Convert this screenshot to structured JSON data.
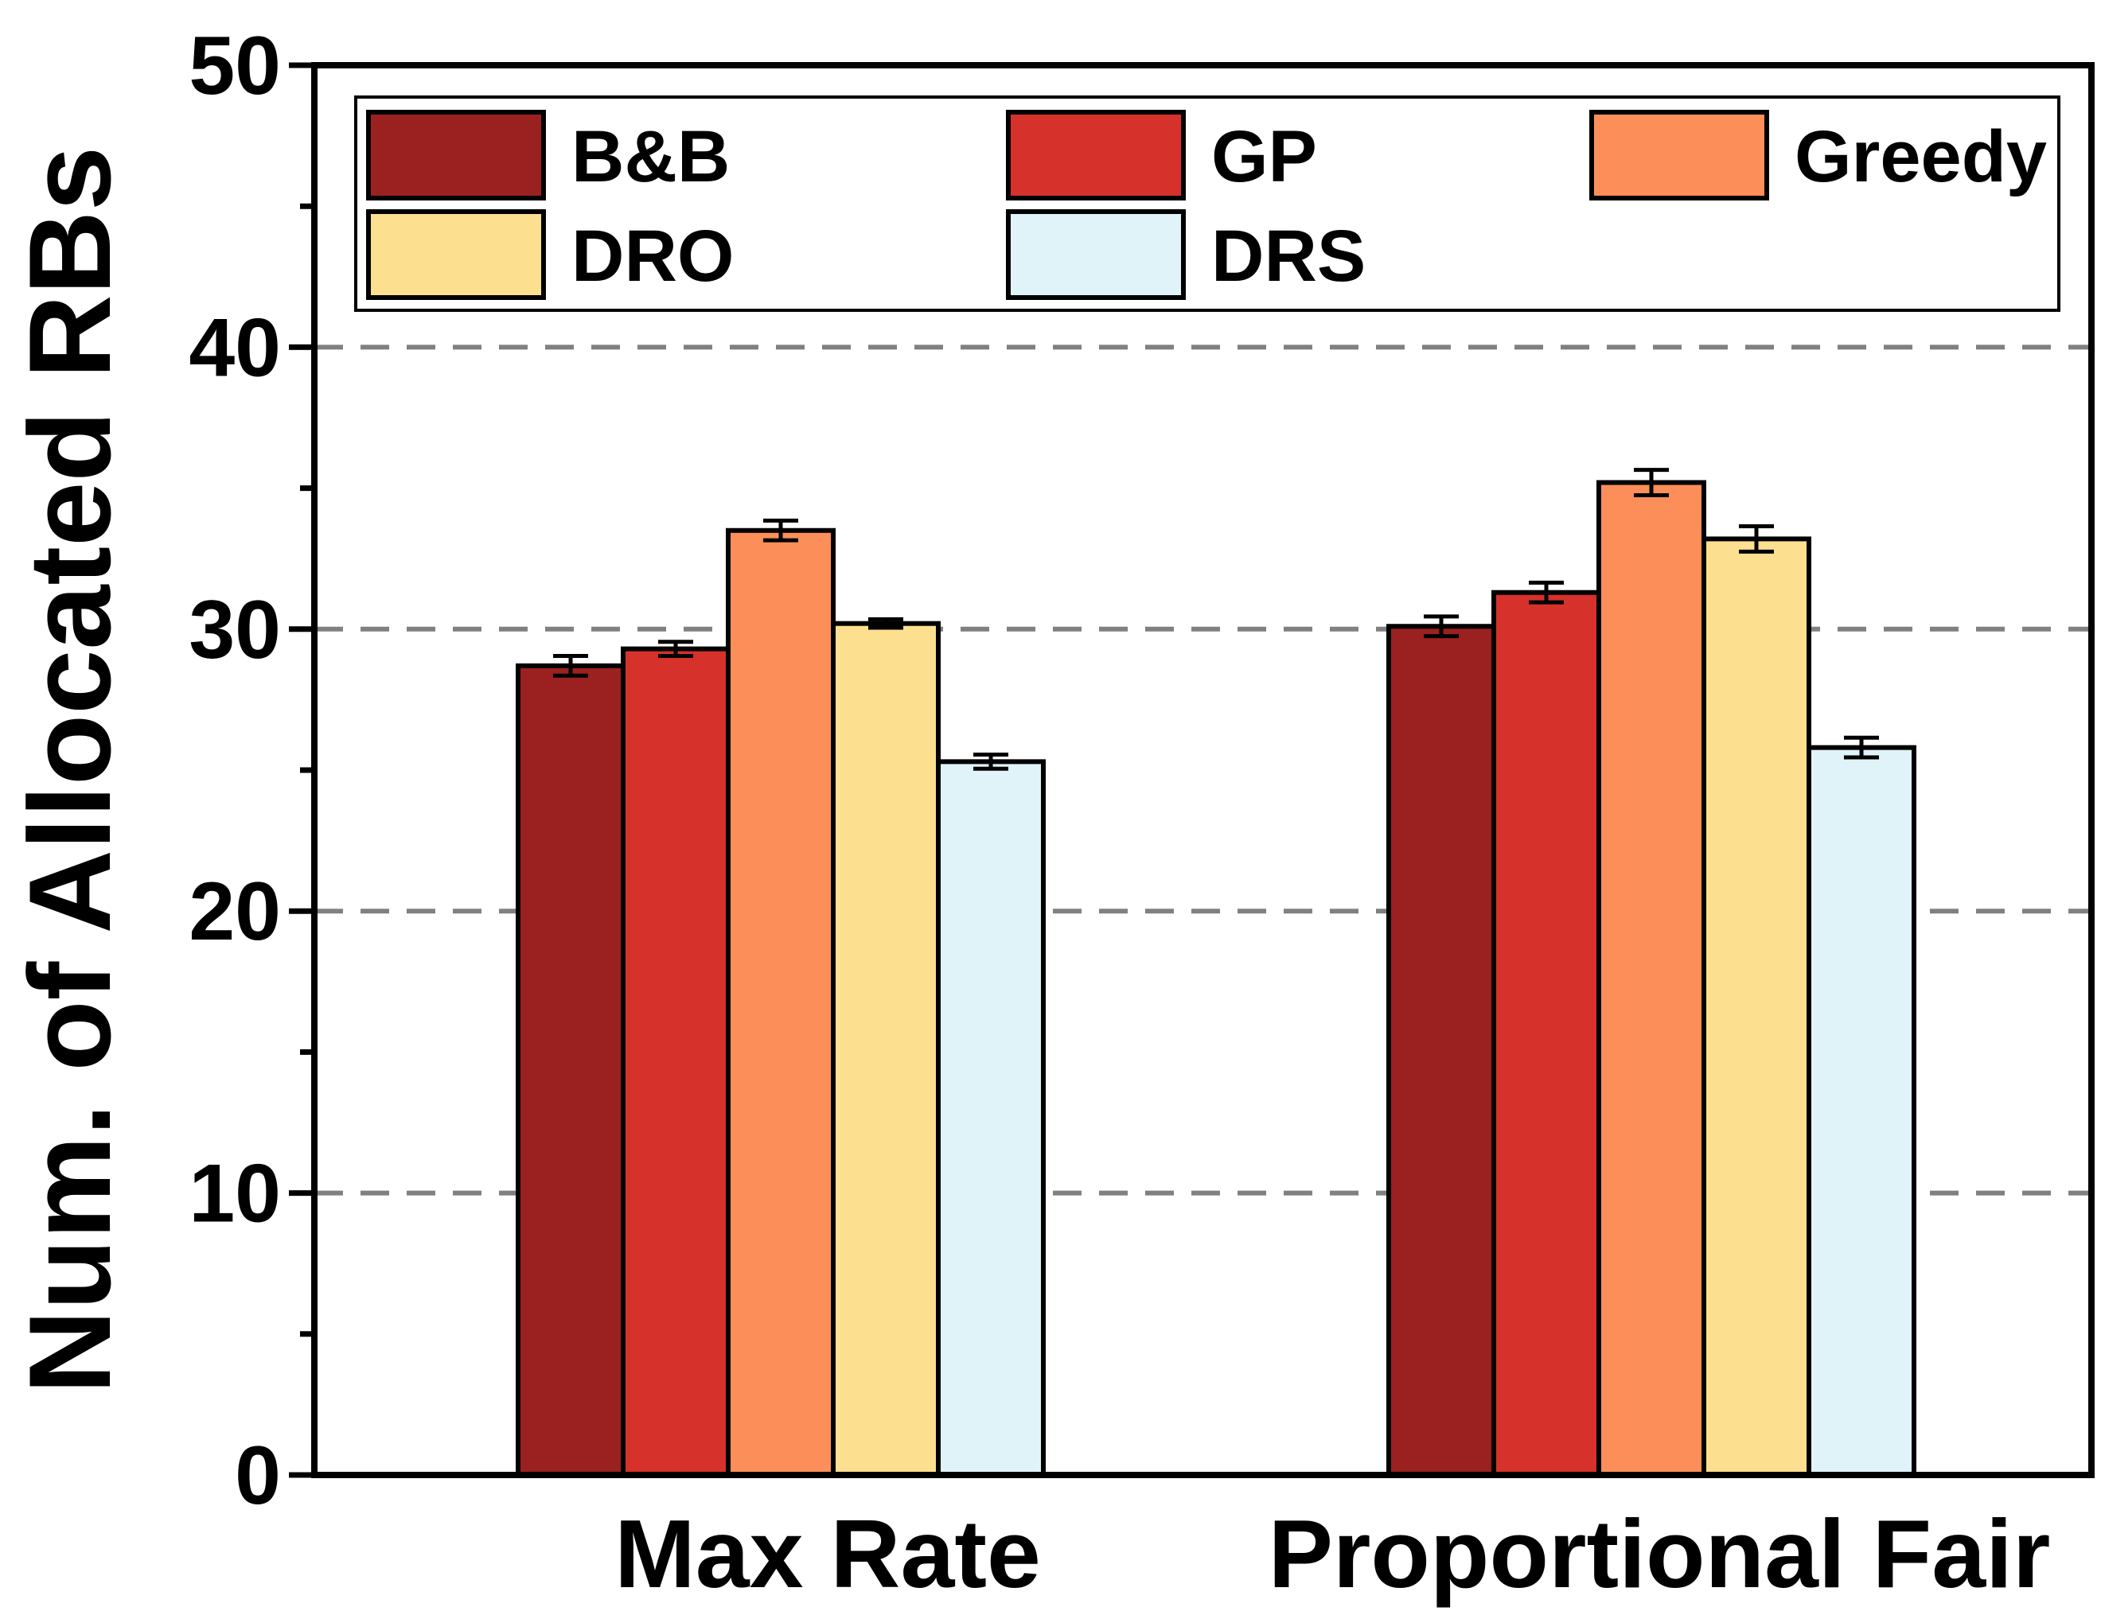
{
  "chart_data": {
    "type": "bar",
    "title": "",
    "xlabel": "",
    "ylabel": "Num. of Allocated RBs",
    "ylim": [
      0,
      50
    ],
    "yticks": [
      0,
      10,
      20,
      30,
      40,
      50
    ],
    "grid": "dashed horizontal at 10, 20, 30, 40",
    "legend_position": "top",
    "categories": [
      "Max Rate",
      "Proportional Fair"
    ],
    "series": [
      {
        "name": "B&B",
        "color": "#9b2120",
        "values": [
          28.7,
          30.1
        ],
        "errors": [
          0.35,
          0.35
        ]
      },
      {
        "name": "GP",
        "color": "#d7312b",
        "values": [
          29.3,
          31.3
        ],
        "errors": [
          0.25,
          0.35
        ]
      },
      {
        "name": "Greedy",
        "color": "#fc8f59",
        "values": [
          33.5,
          35.2
        ],
        "errors": [
          0.35,
          0.45
        ]
      },
      {
        "name": "DRO",
        "color": "#fddf90",
        "values": [
          30.2,
          33.2
        ],
        "errors": [
          0.15,
          0.45
        ]
      },
      {
        "name": "DRS",
        "color": "#e0f3f8",
        "values": [
          25.3,
          25.8
        ],
        "errors": [
          0.25,
          0.35
        ]
      }
    ]
  }
}
